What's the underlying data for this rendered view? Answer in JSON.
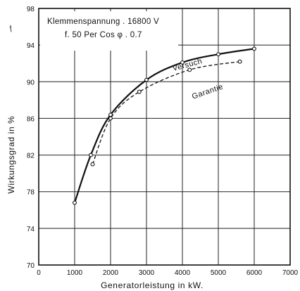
{
  "chart_data": {
    "type": "line",
    "xlabel": "Generatorleistung   in   kW.",
    "ylabel": "Wirkungsgrad   in   %",
    "xlim": [
      0,
      7000
    ],
    "ylim": [
      70,
      98
    ],
    "x_ticks": [
      "0",
      "1000",
      "2000",
      "3000",
      "4000",
      "5000",
      "6000",
      "7000"
    ],
    "y_ticks": [
      "70",
      "74",
      "78",
      "82",
      "86",
      "90",
      "94",
      "98"
    ],
    "grid": true,
    "info_box": {
      "line1": "Klemmenspannung  . 16800 V",
      "line2": "f. 50 Per   Cos φ . 0.7"
    },
    "corner_mark": "ƒ",
    "series": [
      {
        "name": "Versuch",
        "style": "solid",
        "color": "#111111",
        "points": [
          [
            1000,
            76.8
          ],
          [
            1450,
            82.0
          ],
          [
            2000,
            86.4
          ],
          [
            3000,
            90.2
          ],
          [
            4000,
            92.1
          ],
          [
            5000,
            93.0
          ],
          [
            6000,
            93.6
          ]
        ]
      },
      {
        "name": "Garantie",
        "style": "dashed",
        "color": "#111111",
        "points": [
          [
            1500,
            81.0
          ],
          [
            2000,
            86.0
          ],
          [
            2800,
            88.9
          ],
          [
            4200,
            91.3
          ],
          [
            5600,
            92.2
          ]
        ]
      }
    ]
  }
}
